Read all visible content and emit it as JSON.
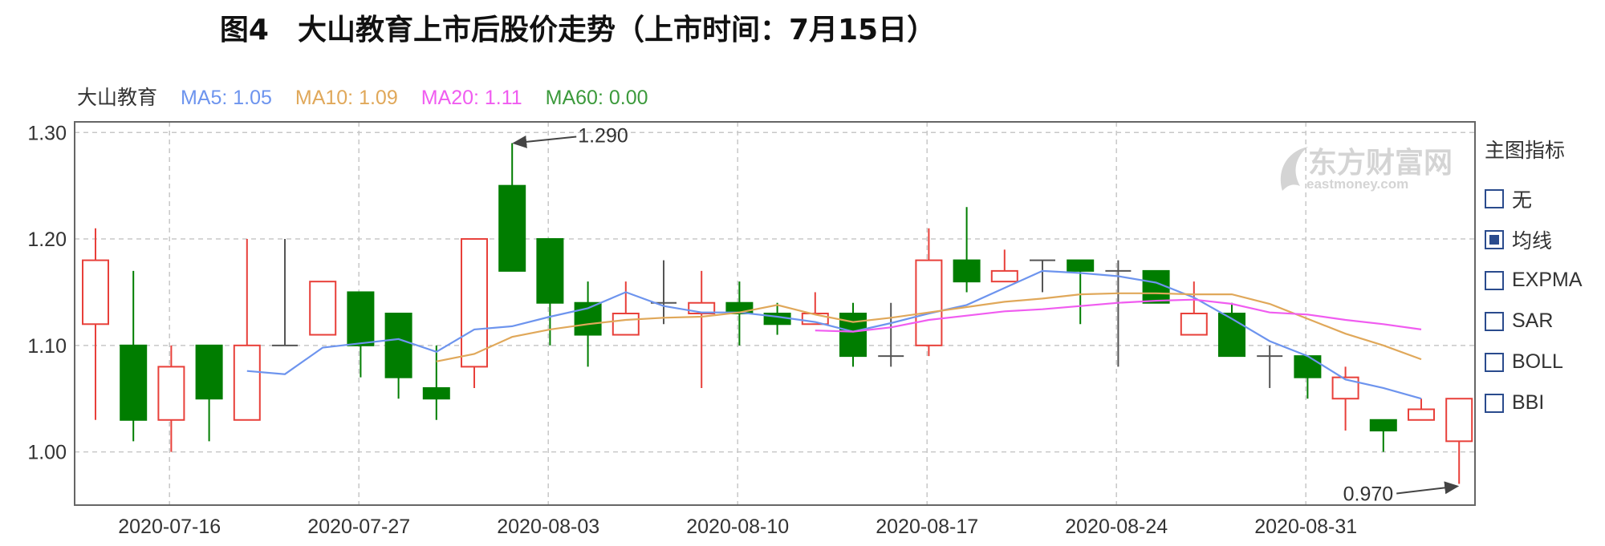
{
  "figure_title": "图4　大山教育上市后股价走势（上市时间：7月15日）",
  "legend": {
    "name": "大山教育",
    "ma5": "MA5: 1.05",
    "ma10": "MA10: 1.09",
    "ma20": "MA20: 1.11",
    "ma60": "MA60: 0.00"
  },
  "watermark": {
    "cn": "东方财富网",
    "en": "eastmoney.com"
  },
  "indicator_panel": {
    "title": "主图指标",
    "options": [
      {
        "label": "无",
        "checked": false
      },
      {
        "label": "均线",
        "checked": true
      },
      {
        "label": "EXPMA",
        "checked": false
      },
      {
        "label": "SAR",
        "checked": false
      },
      {
        "label": "BOLL",
        "checked": false
      },
      {
        "label": "BBI",
        "checked": false
      }
    ]
  },
  "colors": {
    "up": "#e8403a",
    "down": "#007d00",
    "flat": "#555555",
    "ma5": "#6d94ee",
    "ma10": "#e0a85a",
    "ma20": "#f05cf0",
    "ma60": "#3c9a3c",
    "legend_name": "#333333"
  },
  "chart_data": {
    "type": "candlestick",
    "ylim": [
      0.95,
      1.31
    ],
    "yticks": [
      1.0,
      1.1,
      1.2,
      1.3
    ],
    "ytick_labels": [
      "1.00",
      "1.10",
      "1.20",
      "1.30"
    ],
    "grid": true,
    "xtick_labels": [
      {
        "label": "2020-07-16",
        "index": 1
      },
      {
        "label": "2020-07-27",
        "index": 6
      },
      {
        "label": "2020-08-03",
        "index": 11
      },
      {
        "label": "2020-08-10",
        "index": 16
      },
      {
        "label": "2020-08-17",
        "index": 21
      },
      {
        "label": "2020-08-24",
        "index": 26
      },
      {
        "label": "2020-08-31",
        "index": 31
      }
    ],
    "candles": [
      {
        "o": 1.12,
        "h": 1.21,
        "l": 1.03,
        "c": 1.18
      },
      {
        "o": 1.1,
        "h": 1.17,
        "l": 1.01,
        "c": 1.03
      },
      {
        "o": 1.03,
        "h": 1.1,
        "l": 1.0,
        "c": 1.08
      },
      {
        "o": 1.1,
        "h": 1.1,
        "l": 1.01,
        "c": 1.05
      },
      {
        "o": 1.03,
        "h": 1.2,
        "l": 1.03,
        "c": 1.1
      },
      {
        "o": 1.1,
        "h": 1.2,
        "l": 1.1,
        "c": 1.1
      },
      {
        "o": 1.11,
        "h": 1.16,
        "l": 1.11,
        "c": 1.16
      },
      {
        "o": 1.15,
        "h": 1.15,
        "l": 1.07,
        "c": 1.1
      },
      {
        "o": 1.13,
        "h": 1.13,
        "l": 1.05,
        "c": 1.07
      },
      {
        "o": 1.06,
        "h": 1.1,
        "l": 1.03,
        "c": 1.05
      },
      {
        "o": 1.08,
        "h": 1.2,
        "l": 1.06,
        "c": 1.2
      },
      {
        "o": 1.25,
        "h": 1.29,
        "l": 1.17,
        "c": 1.17
      },
      {
        "o": 1.2,
        "h": 1.2,
        "l": 1.1,
        "c": 1.14
      },
      {
        "o": 1.14,
        "h": 1.16,
        "l": 1.08,
        "c": 1.11
      },
      {
        "o": 1.11,
        "h": 1.16,
        "l": 1.11,
        "c": 1.13
      },
      {
        "o": 1.14,
        "h": 1.18,
        "l": 1.12,
        "c": 1.14
      },
      {
        "o": 1.13,
        "h": 1.17,
        "l": 1.06,
        "c": 1.14
      },
      {
        "o": 1.14,
        "h": 1.16,
        "l": 1.1,
        "c": 1.13
      },
      {
        "o": 1.13,
        "h": 1.14,
        "l": 1.11,
        "c": 1.12
      },
      {
        "o": 1.12,
        "h": 1.15,
        "l": 1.12,
        "c": 1.13
      },
      {
        "o": 1.13,
        "h": 1.14,
        "l": 1.08,
        "c": 1.09
      },
      {
        "o": 1.09,
        "h": 1.14,
        "l": 1.08,
        "c": 1.09
      },
      {
        "o": 1.1,
        "h": 1.21,
        "l": 1.09,
        "c": 1.18
      },
      {
        "o": 1.18,
        "h": 1.23,
        "l": 1.15,
        "c": 1.16
      },
      {
        "o": 1.16,
        "h": 1.19,
        "l": 1.16,
        "c": 1.17
      },
      {
        "o": 1.18,
        "h": 1.18,
        "l": 1.15,
        "c": 1.18
      },
      {
        "o": 1.18,
        "h": 1.18,
        "l": 1.12,
        "c": 1.17
      },
      {
        "o": 1.17,
        "h": 1.18,
        "l": 1.08,
        "c": 1.17
      },
      {
        "o": 1.17,
        "h": 1.17,
        "l": 1.14,
        "c": 1.14
      },
      {
        "o": 1.11,
        "h": 1.16,
        "l": 1.11,
        "c": 1.13
      },
      {
        "o": 1.13,
        "h": 1.14,
        "l": 1.09,
        "c": 1.09
      },
      {
        "o": 1.09,
        "h": 1.1,
        "l": 1.06,
        "c": 1.09
      },
      {
        "o": 1.09,
        "h": 1.09,
        "l": 1.05,
        "c": 1.07
      },
      {
        "o": 1.05,
        "h": 1.08,
        "l": 1.02,
        "c": 1.07
      },
      {
        "o": 1.03,
        "h": 1.03,
        "l": 1.0,
        "c": 1.02
      },
      {
        "o": 1.03,
        "h": 1.05,
        "l": 1.03,
        "c": 1.04
      },
      {
        "o": 1.01,
        "h": 1.05,
        "l": 0.97,
        "c": 1.05
      }
    ],
    "ma5": [
      [
        4,
        1.076
      ],
      [
        5,
        1.073
      ],
      [
        6,
        1.098
      ],
      [
        7,
        1.102
      ],
      [
        8,
        1.106
      ],
      [
        9,
        1.094
      ],
      [
        10,
        1.115
      ],
      [
        11,
        1.118
      ],
      [
        12,
        1.127
      ],
      [
        13,
        1.135
      ],
      [
        14,
        1.15
      ],
      [
        15,
        1.137
      ],
      [
        16,
        1.131
      ],
      [
        17,
        1.131
      ],
      [
        18,
        1.127
      ],
      [
        19,
        1.122
      ],
      [
        20,
        1.113
      ],
      [
        21,
        1.121
      ],
      [
        22,
        1.13
      ],
      [
        23,
        1.138
      ],
      [
        24,
        1.154
      ],
      [
        25,
        1.17
      ],
      [
        26,
        1.168
      ],
      [
        27,
        1.165
      ],
      [
        28,
        1.159
      ],
      [
        29,
        1.145
      ],
      [
        30,
        1.125
      ],
      [
        31,
        1.104
      ],
      [
        32,
        1.09
      ],
      [
        33,
        1.068
      ],
      [
        34,
        1.06
      ],
      [
        35,
        1.05
      ]
    ],
    "ma10": [
      [
        9,
        1.085
      ],
      [
        10,
        1.092
      ],
      [
        11,
        1.108
      ],
      [
        12,
        1.115
      ],
      [
        13,
        1.12
      ],
      [
        14,
        1.124
      ],
      [
        15,
        1.126
      ],
      [
        16,
        1.127
      ],
      [
        17,
        1.131
      ],
      [
        18,
        1.138
      ],
      [
        19,
        1.129
      ],
      [
        20,
        1.122
      ],
      [
        21,
        1.126
      ],
      [
        22,
        1.131
      ],
      [
        23,
        1.136
      ],
      [
        24,
        1.141
      ],
      [
        25,
        1.144
      ],
      [
        26,
        1.148
      ],
      [
        27,
        1.149
      ],
      [
        28,
        1.149
      ],
      [
        29,
        1.148
      ],
      [
        30,
        1.148
      ],
      [
        31,
        1.139
      ],
      [
        32,
        1.125
      ],
      [
        33,
        1.111
      ],
      [
        34,
        1.1
      ],
      [
        35,
        1.087
      ]
    ],
    "ma20": [
      [
        19,
        1.114
      ],
      [
        20,
        1.113
      ],
      [
        21,
        1.117
      ],
      [
        22,
        1.124
      ],
      [
        23,
        1.128
      ],
      [
        24,
        1.132
      ],
      [
        25,
        1.134
      ],
      [
        26,
        1.137
      ],
      [
        27,
        1.14
      ],
      [
        28,
        1.142
      ],
      [
        29,
        1.143
      ],
      [
        30,
        1.139
      ],
      [
        31,
        1.131
      ],
      [
        32,
        1.129
      ],
      [
        33,
        1.124
      ],
      [
        34,
        1.12
      ],
      [
        35,
        1.115
      ]
    ],
    "annotations": [
      {
        "text": "1.290",
        "index": 11,
        "value": 1.29,
        "side": "right"
      },
      {
        "text": "0.970",
        "index": 36,
        "value": 0.97,
        "side": "left"
      }
    ]
  }
}
